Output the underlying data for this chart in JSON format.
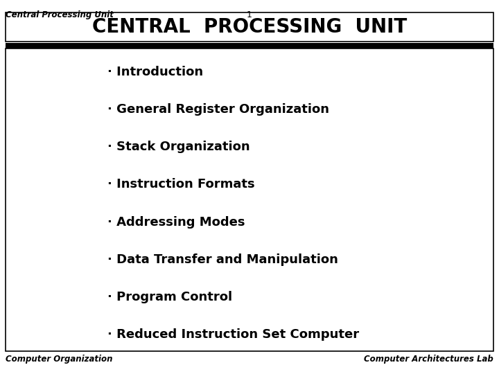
{
  "slide_number": "1",
  "top_left_text": "Central Processing Unit",
  "title": "CENTRAL  PROCESSING  UNIT",
  "bullet_items": [
    "· Introduction",
    "· General Register Organization",
    "· Stack Organization",
    "· Instruction Formats",
    "· Addressing Modes",
    "· Data Transfer and Manipulation",
    "· Program Control",
    "· Reduced Instruction Set Computer"
  ],
  "bottom_left": "Computer Organization",
  "bottom_right": "Computer Architectures Lab",
  "bg_color": "#ffffff",
  "border_color": "#000000",
  "bullet_color": "#000000",
  "bullet_fontsize": 13,
  "title_fontsize": 20
}
